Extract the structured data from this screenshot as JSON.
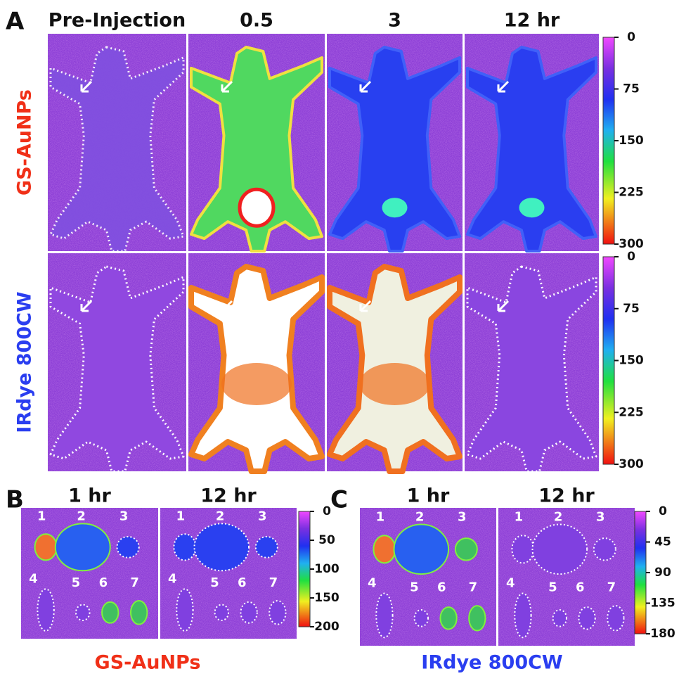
{
  "panels": [
    {
      "letter": "A",
      "columns": [
        "Pre-Injection",
        "0.5",
        "3",
        "12 hr"
      ],
      "rows": [
        {
          "label": "GS-AuNPs",
          "colorbar": [
            0,
            75,
            150,
            225,
            300
          ]
        },
        {
          "label": "IRdye 800CW",
          "colorbar": [
            0,
            75,
            150,
            225,
            300
          ]
        }
      ]
    },
    {
      "letter": "B",
      "columns": [
        "1 hr",
        "12 hr"
      ],
      "organs": [
        "1",
        "2",
        "3",
        "4",
        "5",
        "6",
        "7"
      ],
      "colorbar": [
        0,
        50,
        100,
        150,
        200
      ],
      "label": "GS-AuNPs"
    },
    {
      "letter": "C",
      "columns": [
        "1 hr",
        "12 hr"
      ],
      "organs": [
        "1",
        "2",
        "3",
        "4",
        "5",
        "6",
        "7"
      ],
      "colorbar": [
        0,
        45,
        90,
        135,
        180
      ],
      "label": "IRdye  800CW"
    }
  ]
}
